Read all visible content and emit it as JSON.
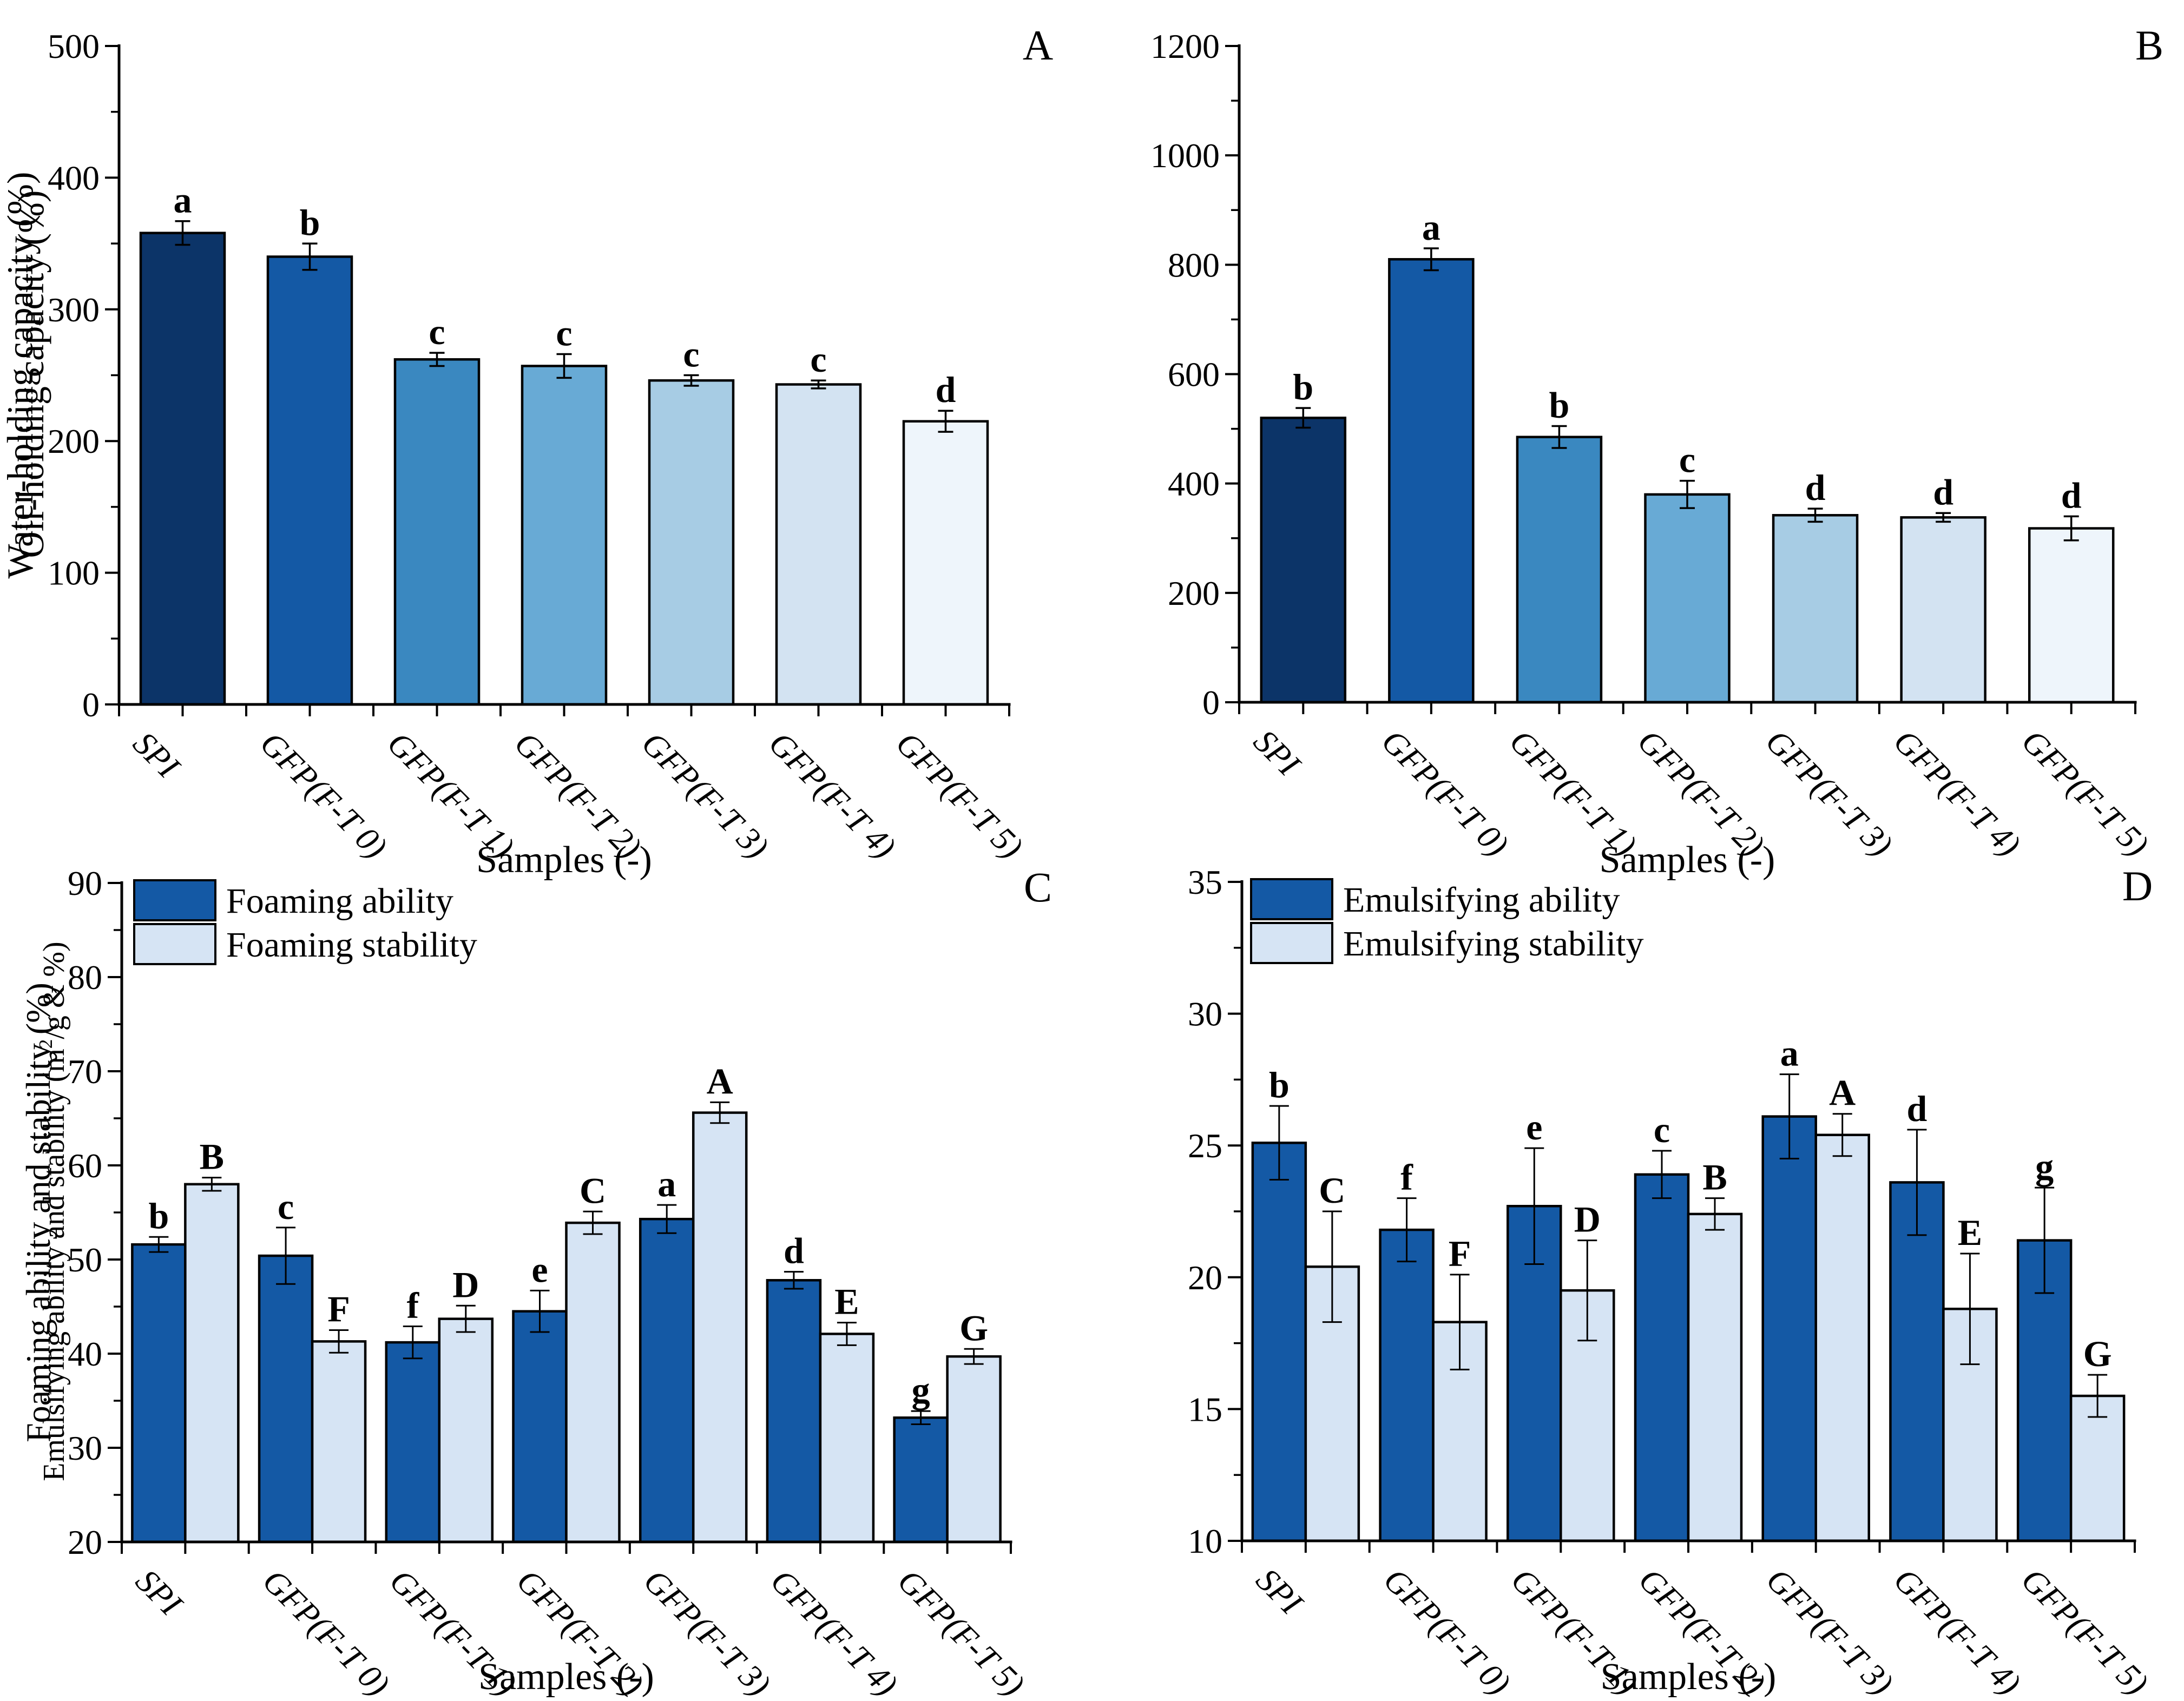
{
  "figure": {
    "background": "#ffffff",
    "axis_color": "#000000",
    "bar_border_color": "#000000",
    "categories": [
      "SPI",
      "GFP(F-T 0)",
      "GFP(F-T 1)",
      "GFP(F-T 2)",
      "GFP(F-T 3)",
      "GFP(F-T 4)",
      "GFP(F-T 5)"
    ],
    "xlabel": "Samples (-)",
    "gradient_bar_colors": [
      "#0c3468",
      "#1459a5",
      "#3a88c0",
      "#68aad5",
      "#a7cce4",
      "#d3e3f2",
      "#eef5fb"
    ],
    "series_dark_color": "#1459a5",
    "series_light_color": "#d6e4f4"
  },
  "chart_data": [
    {
      "panel": "A",
      "type": "bar",
      "corner_label": "A",
      "xlabel": "Samples (-)",
      "ylabel_parts": [
        {
          "t": "Water-holding capacity (%)"
        }
      ],
      "categories": [
        "SPI",
        "GFP(F-T 0)",
        "GFP(F-T 1)",
        "GFP(F-T 2)",
        "GFP(F-T 3)",
        "GFP(F-T 4)",
        "GFP(F-T 5)"
      ],
      "ylim": [
        0,
        500
      ],
      "ytick_step": 100,
      "yminor_step": 50,
      "grid": false,
      "legend": null,
      "series": [
        {
          "name": "Water-holding capacity",
          "bar_colors": [
            "#0c3468",
            "#1459a5",
            "#3a88c0",
            "#68aad5",
            "#a7cce4",
            "#d3e3f2",
            "#eef5fb"
          ],
          "values": [
            358,
            340,
            262,
            257,
            246,
            243,
            215
          ],
          "errors": [
            9,
            10,
            5,
            9,
            4,
            3,
            8
          ],
          "letters": [
            "a",
            "b",
            "c",
            "c",
            "c",
            "c",
            "d"
          ]
        }
      ]
    },
    {
      "panel": "B",
      "type": "bar",
      "corner_label": "B",
      "xlabel": "Samples (-)",
      "ylabel_parts": [
        {
          "t": "Oil-holding capacity (%)"
        }
      ],
      "categories": [
        "SPI",
        "GFP(F-T 0)",
        "GFP(F-T 1)",
        "GFP(F-T 2)",
        "GFP(F-T 3)",
        "GFP(F-T 4)",
        "GFP(F-T 5)"
      ],
      "ylim": [
        0,
        1200
      ],
      "ytick_step": 200,
      "yminor_step": 100,
      "grid": false,
      "legend": null,
      "series": [
        {
          "name": "Oil-holding capacity",
          "bar_colors": [
            "#0c3468",
            "#1459a5",
            "#3a88c0",
            "#68aad5",
            "#a7cce4",
            "#d3e3f2",
            "#eef5fb"
          ],
          "values": [
            520,
            810,
            485,
            380,
            342,
            338,
            318
          ],
          "errors": [
            18,
            20,
            20,
            25,
            12,
            8,
            22
          ],
          "letters": [
            "b",
            "a",
            "b",
            "c",
            "d",
            "d",
            "d"
          ]
        }
      ]
    },
    {
      "panel": "C",
      "type": "bar",
      "corner_label": "C",
      "xlabel": "Samples (-)",
      "ylabel_parts": [
        {
          "t": "Foaming ability and stability (%)"
        }
      ],
      "categories": [
        "SPI",
        "GFP(F-T 0)",
        "GFP(F-T 1)",
        "GFP(F-T 2)",
        "GFP(F-T 3)",
        "GFP(F-T 4)",
        "GFP(F-T 5)"
      ],
      "ylim": [
        20,
        90
      ],
      "ytick_step": 10,
      "yminor_step": 5,
      "grid": false,
      "legend": [
        "Foaming ability",
        "Foaming stability"
      ],
      "series": [
        {
          "name": "Foaming ability",
          "color": "#1459a5",
          "values": [
            51.6,
            50.4,
            41.2,
            44.5,
            54.3,
            47.8,
            33.2
          ],
          "errors": [
            0.8,
            3.0,
            1.7,
            2.2,
            1.5,
            0.9,
            0.7
          ],
          "letters": [
            "b",
            "c",
            "f",
            "e",
            "a",
            "d",
            "g"
          ]
        },
        {
          "name": "Foaming stability",
          "color": "#d6e4f4",
          "values": [
            58.0,
            41.3,
            43.7,
            53.9,
            65.6,
            42.1,
            39.7
          ],
          "errors": [
            0.7,
            1.2,
            1.4,
            1.2,
            1.1,
            1.2,
            0.8
          ],
          "letters": [
            "B",
            "F",
            "D",
            "C",
            "A",
            "E",
            "G"
          ]
        }
      ]
    },
    {
      "panel": "D",
      "type": "bar",
      "corner_label": "D",
      "xlabel": "Samples (-)",
      "ylabel_parts": [
        {
          "t": "Emulsifying ability and stability (m"
        },
        {
          "t": "2",
          "sup": true
        },
        {
          "t": "/g & %)"
        }
      ],
      "categories": [
        "SPI",
        "GFP(F-T 0)",
        "GFP(F-T 1)",
        "GFP(F-T 2)",
        "GFP(F-T 3)",
        "GFP(F-T 4)",
        "GFP(F-T 5)"
      ],
      "ylim": [
        10,
        35
      ],
      "ytick_step": 5,
      "yminor_step": 2.5,
      "grid": false,
      "legend": [
        "Emulsifying ability",
        "Emulsifying stability"
      ],
      "series": [
        {
          "name": "Emulsifying ability",
          "color": "#1459a5",
          "values": [
            25.1,
            21.8,
            22.7,
            23.9,
            26.1,
            23.6,
            21.4
          ],
          "errors": [
            1.4,
            1.2,
            2.2,
            0.9,
            1.6,
            2.0,
            2.0
          ],
          "letters": [
            "b",
            "f",
            "e",
            "c",
            "a",
            "d",
            "g"
          ]
        },
        {
          "name": "Emulsifying stability",
          "color": "#d6e4f4",
          "values": [
            20.4,
            18.3,
            19.5,
            22.4,
            25.4,
            18.8,
            15.5
          ],
          "errors": [
            2.1,
            1.8,
            1.9,
            0.6,
            0.8,
            2.1,
            0.8
          ],
          "letters": [
            "C",
            "F",
            "D",
            "B",
            "A",
            "E",
            "G"
          ]
        }
      ]
    }
  ]
}
